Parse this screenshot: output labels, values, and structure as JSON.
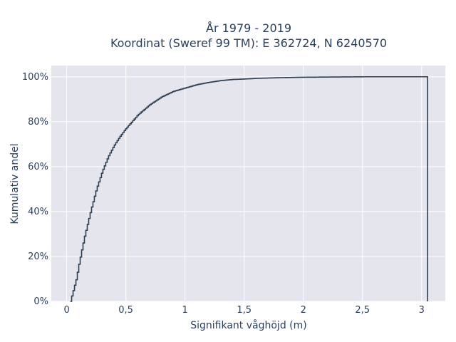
{
  "chart_data": {
    "type": "line",
    "subtype": "ecdf-step",
    "title_lines": [
      "År 1979 - 2019",
      "Koordinat (Sweref 99 TM): E 362724, N 6240570"
    ],
    "xlabel": "Signifikant våghöjd (m)",
    "ylabel": "Kumulativ andel",
    "xlim": [
      -0.13,
      3.2
    ],
    "ylim": [
      0,
      1.05
    ],
    "x_ticks": [
      0,
      0.5,
      1,
      1.5,
      2,
      2.5,
      3
    ],
    "x_tick_labels": [
      "0",
      "0,5",
      "1",
      "1,5",
      "2",
      "2,5",
      "3"
    ],
    "y_ticks": [
      0,
      0.2,
      0.4,
      0.6,
      0.8,
      1.0
    ],
    "y_tick_labels": [
      "0%",
      "20%",
      "40%",
      "60%",
      "80%",
      "100%"
    ],
    "grid": true,
    "line_color": "#2f3e4f",
    "plot_bg": "#e5e5ee",
    "series": [
      {
        "x": [
          0.03,
          0.05,
          0.08,
          0.1,
          0.13,
          0.15,
          0.2,
          0.25,
          0.3,
          0.35,
          0.4,
          0.45,
          0.5,
          0.55,
          0.6,
          0.7,
          0.8,
          0.9,
          1.0,
          1.1,
          1.2,
          1.3,
          1.4,
          1.5,
          1.6,
          1.8,
          2.0,
          2.5,
          3.05
        ],
        "y": [
          0.0,
          0.04,
          0.1,
          0.16,
          0.24,
          0.29,
          0.4,
          0.5,
          0.58,
          0.645,
          0.695,
          0.735,
          0.77,
          0.8,
          0.83,
          0.875,
          0.91,
          0.935,
          0.95,
          0.965,
          0.975,
          0.983,
          0.988,
          0.99,
          0.993,
          0.996,
          0.998,
          1.0,
          1.0
        ]
      }
    ]
  }
}
